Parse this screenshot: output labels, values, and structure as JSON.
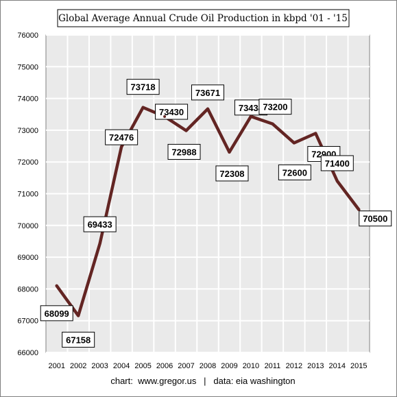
{
  "chart_data": {
    "type": "line",
    "title": "Global Average Annual Crude Oil Production in kbpd '01 - '15",
    "footer": "chart:  www.gregor.us   |   data: eia washington",
    "x": [
      2001,
      2002,
      2003,
      2004,
      2005,
      2006,
      2007,
      2008,
      2009,
      2010,
      2011,
      2012,
      2013,
      2014,
      2015
    ],
    "x_tick_labels": [
      "2001",
      "2002",
      "2003",
      "2004",
      "2005",
      "2006",
      "2007",
      "2008",
      "2009",
      "2010",
      "2011",
      "2012",
      "2013",
      "2014",
      "2015"
    ],
    "series": [
      {
        "values": [
          68099,
          67158,
          69433,
          72476,
          73718,
          73430,
          72988,
          73671,
          72308,
          73434,
          73200,
          72600,
          72900,
          71400,
          70500
        ],
        "color": "#632523"
      }
    ],
    "data_labels": [
      "68099",
      "67158",
      "69433",
      "72476",
      "73718",
      "73430",
      "72988",
      "73671",
      "72308",
      "73434",
      "73200",
      "72600",
      "72900",
      "71400",
      "70500"
    ],
    "y_tick_labels": [
      "66000",
      "67000",
      "68000",
      "69000",
      "70000",
      "71000",
      "72000",
      "73000",
      "74000",
      "75000",
      "76000"
    ],
    "ylim": [
      66000,
      76000
    ],
    "grid": true,
    "legend": "none",
    "plot_background": "#eaeaea",
    "gridline_color": "#ffffff"
  }
}
